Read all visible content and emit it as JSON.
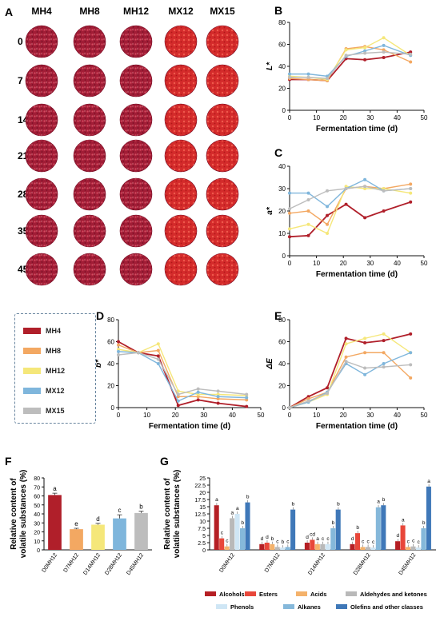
{
  "panel_labels": [
    "A",
    "B",
    "C",
    "D",
    "E",
    "F",
    "G"
  ],
  "photo_grid": {
    "columns": [
      "MH4",
      "MH8",
      "MH12",
      "MX12",
      "MX15"
    ],
    "rows": [
      "0",
      "7",
      "14",
      "21",
      "28",
      "35",
      "45"
    ]
  },
  "legend": [
    {
      "label": "MH4",
      "color": "#b01f2a"
    },
    {
      "label": "MH8",
      "color": "#f3a862"
    },
    {
      "label": "MH12",
      "color": "#f5e77a"
    },
    {
      "label": "MX12",
      "color": "#7fb6dc"
    },
    {
      "label": "MX15",
      "color": "#bdbdbd"
    }
  ],
  "chart_data": [
    {
      "id": "B",
      "type": "line",
      "xlabel": "Fermentation time (d)",
      "ylabel": "L*",
      "xlim": [
        0,
        50
      ],
      "ylim": [
        0,
        80
      ],
      "xticks": [
        0,
        10,
        20,
        30,
        40,
        50
      ],
      "yticks": [
        0,
        20,
        40,
        60,
        80
      ],
      "x": [
        0,
        7,
        14,
        21,
        28,
        35,
        45
      ],
      "series": [
        {
          "name": "MH4",
          "color": "#b01f2a",
          "values": [
            28,
            28,
            27,
            47,
            46,
            48,
            53
          ]
        },
        {
          "name": "MH8",
          "color": "#f3a862",
          "values": [
            29,
            28,
            27,
            56,
            58,
            55,
            44
          ]
        },
        {
          "name": "MH12",
          "color": "#f5e77a",
          "values": [
            31,
            30,
            28,
            55,
            57,
            66,
            50
          ]
        },
        {
          "name": "MX12",
          "color": "#7fb6dc",
          "values": [
            33,
            33,
            31,
            49,
            54,
            59,
            50
          ]
        },
        {
          "name": "MX15",
          "color": "#bdbdbd",
          "values": [
            30,
            30,
            29,
            50,
            52,
            53,
            51
          ]
        }
      ]
    },
    {
      "id": "C",
      "type": "line",
      "xlabel": "Fermentation time (d)",
      "ylabel": "a*",
      "xlim": [
        0,
        50
      ],
      "ylim": [
        0,
        40
      ],
      "xticks": [
        0,
        10,
        20,
        30,
        40,
        50
      ],
      "yticks": [
        0,
        10,
        20,
        30,
        40
      ],
      "x": [
        0,
        7,
        14,
        21,
        28,
        35,
        45
      ],
      "series": [
        {
          "name": "MH4",
          "color": "#b01f2a",
          "values": [
            8.5,
            9,
            18,
            23,
            17,
            20,
            24
          ]
        },
        {
          "name": "MH8",
          "color": "#f3a862",
          "values": [
            19,
            20,
            14,
            30,
            31,
            30,
            32
          ]
        },
        {
          "name": "MH12",
          "color": "#f5e77a",
          "values": [
            12,
            14,
            10,
            31,
            30,
            30,
            28
          ]
        },
        {
          "name": "MX12",
          "color": "#7fb6dc",
          "values": [
            28,
            28,
            22,
            30,
            34,
            29,
            30
          ]
        },
        {
          "name": "MX15",
          "color": "#bdbdbd",
          "values": [
            21,
            25,
            29,
            30,
            31,
            29,
            30
          ]
        }
      ]
    },
    {
      "id": "D",
      "type": "line",
      "xlabel": "Fermentation time (d)",
      "ylabel": "b*",
      "xlim": [
        0,
        50
      ],
      "ylim": [
        0,
        80
      ],
      "xticks": [
        0,
        10,
        20,
        30,
        40,
        50
      ],
      "yticks": [
        0,
        20,
        40,
        60,
        80
      ],
      "x": [
        0,
        7,
        14,
        21,
        28,
        35,
        45
      ],
      "series": [
        {
          "name": "MH4",
          "color": "#b01f2a",
          "values": [
            60,
            50,
            47,
            2,
            7,
            4,
            1
          ]
        },
        {
          "name": "MH8",
          "color": "#f3a862",
          "values": [
            57,
            50,
            52,
            10,
            10,
            8,
            7
          ]
        },
        {
          "name": "MH12",
          "color": "#f5e77a",
          "values": [
            53,
            50,
            58,
            15,
            12,
            12,
            11
          ]
        },
        {
          "name": "MX12",
          "color": "#7fb6dc",
          "values": [
            51,
            50,
            40,
            6,
            14,
            10,
            9
          ]
        },
        {
          "name": "MX15",
          "color": "#bdbdbd",
          "values": [
            48,
            50,
            44,
            12,
            17,
            15,
            12
          ]
        }
      ]
    },
    {
      "id": "E",
      "type": "line",
      "xlabel": "Fermentation time (d)",
      "ylabel": "ΔE",
      "xlim": [
        0,
        50
      ],
      "ylim": [
        0,
        80
      ],
      "xticks": [
        0,
        10,
        20,
        30,
        40,
        50
      ],
      "yticks": [
        0,
        20,
        40,
        60,
        80
      ],
      "x": [
        0,
        7,
        14,
        21,
        28,
        35,
        45
      ],
      "series": [
        {
          "name": "MH4",
          "color": "#b01f2a",
          "values": [
            0,
            10,
            18,
            63,
            59,
            61,
            67
          ]
        },
        {
          "name": "MH8",
          "color": "#f3a862",
          "values": [
            0,
            8,
            14,
            46,
            50,
            50,
            27
          ]
        },
        {
          "name": "MH12",
          "color": "#f5e77a",
          "values": [
            0,
            5,
            12,
            58,
            63,
            67,
            50
          ]
        },
        {
          "name": "MX12",
          "color": "#7fb6dc",
          "values": [
            0,
            5,
            14,
            40,
            30,
            40,
            50
          ]
        },
        {
          "name": "MX15",
          "color": "#bdbdbd",
          "values": [
            0,
            6,
            13,
            42,
            36,
            37,
            39
          ]
        }
      ]
    },
    {
      "id": "F",
      "type": "bar",
      "ylabel": "Relative content of volatile substances (%)",
      "ylabel_lines": [
        "Relative content of",
        "volatile substances (%)"
      ],
      "ylim": [
        0,
        80
      ],
      "yticks": [
        0,
        10,
        20,
        30,
        40,
        50,
        60,
        70,
        80
      ],
      "categories": [
        "D0MH12",
        "D7MH12",
        "D14MH12",
        "D28MH12",
        "D45MH12"
      ],
      "values": [
        61,
        23,
        28,
        35,
        41
      ],
      "errors": [
        2,
        1,
        1.5,
        4,
        2
      ],
      "letters": [
        "a",
        "e",
        "d",
        "c",
        "b"
      ],
      "colors": [
        "#b01f2a",
        "#f3a862",
        "#f5e77a",
        "#7fb6dc",
        "#bdbdbd"
      ]
    },
    {
      "id": "G",
      "type": "bar",
      "ylabel": "Relative content of volatile substances (%)",
      "ylabel_lines": [
        "Relative content of",
        "volatile substances (%)"
      ],
      "ylim": [
        0,
        25
      ],
      "yticks": [
        0,
        2.5,
        5,
        7.5,
        10,
        12.5,
        15,
        17.5,
        20,
        22.5,
        25
      ],
      "categories": [
        "D0MH12",
        "D7MH12",
        "D14MH12",
        "D28MH12",
        "D45MH12"
      ],
      "series": [
        {
          "name": "Alcohols",
          "color": "#b51f24",
          "values": [
            15.5,
            2.0,
            2.5,
            2.0,
            3.0
          ],
          "letters": [
            "a",
            "d",
            "d",
            "d",
            "d"
          ]
        },
        {
          "name": "Esters",
          "color": "#e8473a",
          "values": [
            4.0,
            2.5,
            3.5,
            5.8,
            8.5
          ],
          "letters": [
            "c",
            "d",
            "cd",
            "b",
            "a"
          ]
        },
        {
          "name": "Acids",
          "color": "#f4b26b",
          "values": [
            1.2,
            2.0,
            2.0,
            1.0,
            1.0
          ],
          "letters": [
            "c",
            "b",
            "a",
            "c",
            "c"
          ]
        },
        {
          "name": "Aldehydes and ketones",
          "color": "#b9b9b9",
          "values": [
            11.0,
            1.0,
            2.0,
            1.0,
            1.2
          ],
          "letters": [
            "a",
            "c",
            "c",
            "c",
            "c"
          ]
        },
        {
          "name": "Phenols",
          "color": "#cfe6f5",
          "values": [
            12.5,
            0.8,
            2.0,
            0.8,
            0.8
          ],
          "letters": [
            "a",
            "b",
            "c",
            "c",
            "c"
          ]
        },
        {
          "name": "Alkanes",
          "color": "#85b8da",
          "values": [
            7.5,
            1.0,
            7.5,
            14.8,
            7.5
          ],
          "letters": [
            "b",
            "c",
            "b",
            "a",
            "b"
          ]
        },
        {
          "name": "Olefins and other classes",
          "color": "#3f78b8",
          "values": [
            16.5,
            14.0,
            14.0,
            15.5,
            22.0
          ],
          "letters": [
            "b",
            "b",
            "b",
            "b",
            "a"
          ]
        }
      ]
    }
  ]
}
